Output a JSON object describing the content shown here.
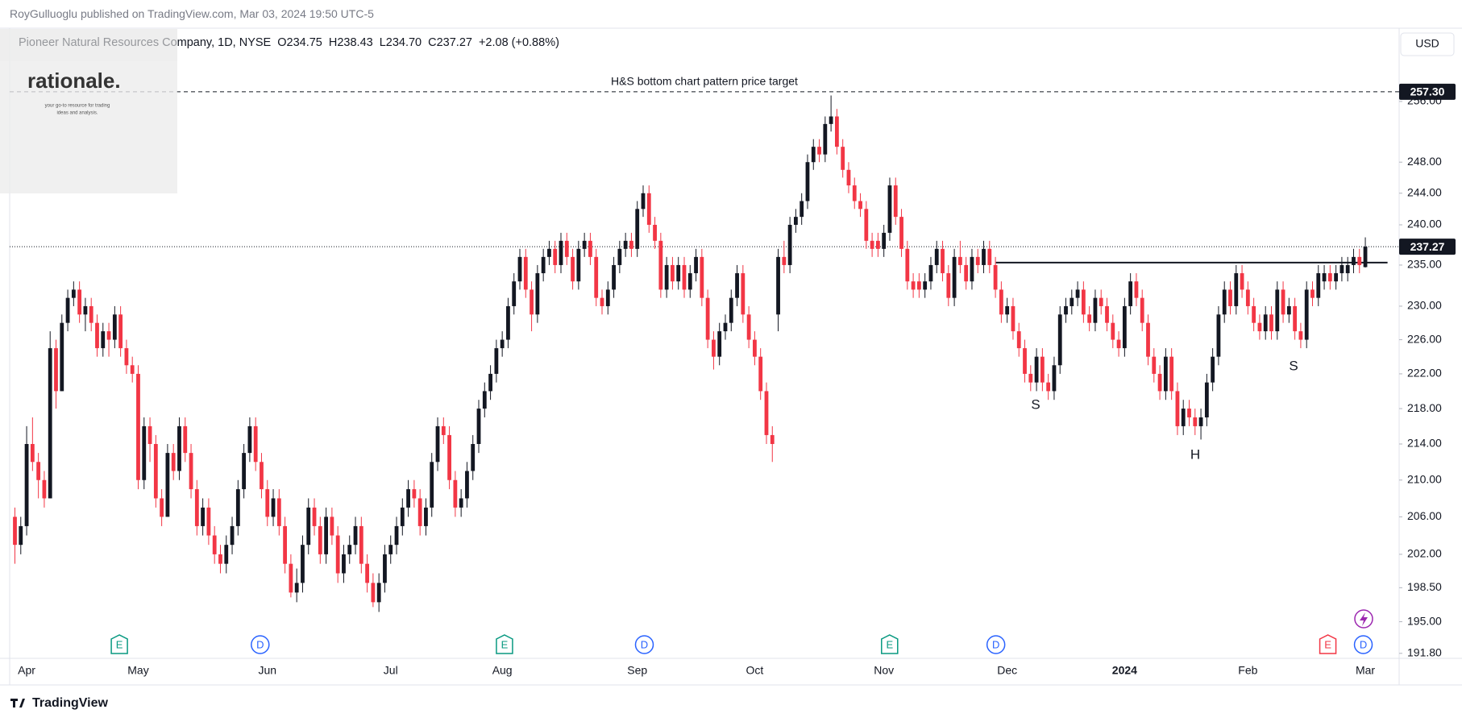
{
  "page": {
    "publisher": "RoyGulluoglu published on TradingView.com, Mar 03, 2024 19:50 UTC-5",
    "currency": "USD",
    "logo": "rationale.",
    "tagline": [
      "your go-to resource for trading",
      "ideas and analysis."
    ],
    "footer": "TradingView"
  },
  "chart_data": {
    "type": "candlestick",
    "title": "Pioneer Natural Resources Company, 1D, NYSE",
    "quote": [
      "O234.75",
      "H238.43",
      "L234.70",
      "C237.27",
      "+2.08 (+0.88%)"
    ],
    "log_scale": true,
    "grid": false,
    "up_color": "#131722",
    "down_color": "#f23645",
    "ylim": [
      191.3,
      266.0
    ],
    "yticks": [
      {
        "value": 191.8,
        "label": "191.80"
      },
      {
        "value": 195,
        "label": "195.00"
      },
      {
        "value": 198.5,
        "label": "198.50"
      },
      {
        "value": 202,
        "label": "202.00"
      },
      {
        "value": 206,
        "label": "206.00"
      },
      {
        "value": 210,
        "label": "210.00"
      },
      {
        "value": 214,
        "label": "214.00"
      },
      {
        "value": 218,
        "label": "218.00"
      },
      {
        "value": 222,
        "label": "222.00"
      },
      {
        "value": 226,
        "label": "226.00"
      },
      {
        "value": 230,
        "label": "230.00"
      },
      {
        "value": 235,
        "label": "235.00"
      },
      {
        "value": 240,
        "label": "240.00"
      },
      {
        "value": 244,
        "label": "244.00"
      },
      {
        "value": 248,
        "label": "248.00"
      },
      {
        "value": 256,
        "label": "256.00"
      }
    ],
    "target": {
      "value": 257.3,
      "label": "257.30"
    },
    "last_price": {
      "value": 237.27,
      "label": "237.27"
    },
    "neckline": 235.3,
    "annotations": [
      "H&S bottom chart pattern price target",
      "S",
      "H",
      "S"
    ],
    "events": [
      "E",
      "D",
      "E",
      "D",
      "E",
      "D",
      "E",
      "D"
    ],
    "categories": [
      null,
      null,
      "Apr",
      null,
      null,
      null,
      null,
      null,
      null,
      null,
      null,
      null,
      null,
      null,
      null,
      null,
      null,
      null,
      null,
      null,
      null,
      "May",
      null,
      null,
      null,
      null,
      null,
      null,
      null,
      null,
      null,
      null,
      null,
      null,
      null,
      null,
      null,
      null,
      null,
      null,
      null,
      null,
      null,
      "Jun",
      null,
      null,
      null,
      null,
      null,
      null,
      null,
      null,
      null,
      null,
      null,
      null,
      null,
      null,
      null,
      null,
      null,
      null,
      null,
      null,
      "Jul",
      null,
      null,
      null,
      null,
      null,
      null,
      null,
      null,
      null,
      null,
      null,
      null,
      null,
      null,
      null,
      null,
      null,
      null,
      "Aug",
      null,
      null,
      null,
      null,
      null,
      null,
      null,
      null,
      null,
      null,
      null,
      null,
      null,
      null,
      null,
      null,
      null,
      null,
      null,
      null,
      null,
      null,
      "Sep",
      null,
      null,
      null,
      null,
      null,
      null,
      null,
      null,
      null,
      null,
      null,
      null,
      null,
      null,
      null,
      null,
      null,
      null,
      null,
      "Oct",
      null,
      null,
      null,
      null,
      null,
      null,
      null,
      null,
      null,
      null,
      null,
      null,
      null,
      null,
      null,
      null,
      null,
      null,
      null,
      null,
      null,
      "Nov",
      null,
      null,
      null,
      null,
      null,
      null,
      null,
      null,
      null,
      null,
      null,
      null,
      null,
      null,
      null,
      null,
      null,
      null,
      null,
      null,
      "Dec",
      null,
      null,
      null,
      null,
      null,
      null,
      null,
      null,
      null,
      null,
      null,
      null,
      null,
      null,
      null,
      null,
      null,
      null,
      null,
      "2024",
      null,
      null,
      null,
      null,
      null,
      null,
      null,
      null,
      null,
      null,
      null,
      null,
      null,
      null,
      null,
      null,
      null,
      null,
      null,
      null,
      "Feb",
      null,
      null,
      null,
      null,
      null,
      null,
      null,
      null,
      null,
      null,
      null,
      null,
      null,
      null,
      null,
      null,
      null,
      null,
      null,
      "Mar"
    ],
    "open": [
      206,
      203,
      205,
      214,
      212,
      210,
      208,
      225,
      220,
      228,
      231,
      232,
      229,
      230,
      228,
      225,
      227,
      226,
      229,
      225,
      223,
      222,
      210,
      216,
      214,
      208,
      206,
      213,
      211,
      216,
      213,
      209,
      205,
      207,
      204,
      202,
      201,
      203,
      205,
      209,
      213,
      216,
      212,
      209,
      206,
      208,
      205,
      201,
      198,
      199,
      203,
      207,
      205,
      202,
      206,
      204,
      200,
      202,
      203,
      205,
      201,
      199,
      197,
      199,
      202,
      203,
      205,
      207,
      209,
      208,
      205,
      207,
      212,
      216,
      215,
      210,
      207,
      208,
      211,
      214,
      218,
      220,
      222,
      225,
      226,
      230,
      233,
      236,
      232,
      229,
      234,
      236,
      237,
      235,
      238,
      236,
      233,
      237,
      238,
      236,
      231,
      230,
      232,
      235,
      237,
      238,
      237,
      242,
      244,
      240,
      238,
      232,
      235,
      233,
      235,
      232,
      234,
      236,
      231,
      226,
      224,
      227,
      228,
      231,
      234,
      229,
      226,
      224,
      220,
      215,
      229,
      236,
      235,
      240,
      241,
      243,
      248,
      250,
      249,
      253,
      254,
      250,
      247,
      245,
      243,
      242,
      238,
      238,
      237,
      239,
      245,
      241,
      237,
      233,
      233,
      232,
      233,
      235,
      237,
      234,
      231,
      236,
      235,
      233,
      236,
      235,
      237,
      235,
      232,
      229,
      230,
      227,
      225,
      222,
      221,
      224,
      221,
      220,
      223,
      229,
      230,
      231,
      232,
      229,
      228,
      231,
      230,
      228,
      226,
      225,
      230,
      233,
      231,
      228,
      224,
      222,
      220,
      224,
      220,
      216,
      218,
      217,
      216,
      217,
      221,
      224,
      229,
      232,
      230,
      234,
      232,
      230,
      228,
      227,
      229,
      227,
      232,
      229,
      230,
      227,
      226,
      232,
      231,
      233,
      234,
      233,
      234,
      234,
      235,
      236,
      234.75
    ],
    "high": [
      207,
      206,
      216,
      217,
      213,
      211,
      227,
      226,
      229,
      232,
      233,
      233,
      231,
      231,
      229,
      228,
      228,
      230,
      230,
      226,
      224,
      223,
      217,
      217,
      215,
      209,
      214,
      214,
      217,
      217,
      214,
      210,
      208,
      208,
      205,
      203,
      204,
      206,
      210,
      214,
      217,
      217,
      213,
      210,
      209,
      209,
      206,
      202,
      200.5,
      204,
      208,
      208,
      206,
      207,
      207,
      205,
      203,
      204,
      206,
      206,
      202,
      200,
      200,
      203,
      204,
      206,
      208,
      210,
      210,
      209,
      208,
      213,
      217,
      217,
      216,
      211,
      209,
      212,
      215,
      219,
      221,
      223,
      226,
      227,
      231,
      234,
      237,
      237,
      233,
      235,
      237,
      238,
      238,
      239,
      239,
      237,
      238,
      239,
      239,
      237,
      232,
      233,
      236,
      238,
      239,
      239,
      243,
      245,
      245,
      241,
      239,
      236,
      236,
      236,
      236,
      235,
      237,
      237,
      232,
      227,
      228,
      229,
      232,
      235,
      235,
      230,
      227,
      225,
      221,
      216,
      237,
      238,
      241,
      242,
      244,
      249,
      251,
      251,
      254,
      256.8,
      255,
      251,
      248,
      246,
      244,
      243,
      239,
      239,
      240,
      246,
      246,
      242,
      238,
      234,
      234,
      234,
      236,
      238,
      238,
      235,
      237,
      238,
      236,
      237,
      237,
      238,
      238,
      236,
      233,
      231,
      231,
      228,
      226,
      223,
      225,
      225,
      222,
      224,
      230,
      231,
      232,
      233,
      233,
      230,
      232,
      232,
      231,
      229,
      227,
      231,
      234,
      234,
      232,
      229,
      225,
      223,
      225,
      225,
      221,
      219,
      219,
      218,
      218,
      222,
      225,
      230,
      233,
      233,
      235,
      235,
      233,
      231,
      229,
      230,
      230,
      233,
      233,
      231,
      231,
      228,
      233,
      233,
      235,
      235,
      235,
      235,
      236,
      236,
      237,
      237,
      238.43
    ],
    "low": [
      201,
      202,
      204,
      211,
      208,
      207,
      208,
      218,
      220,
      227,
      230,
      228,
      227,
      227,
      224,
      224,
      224,
      225,
      224,
      222,
      221,
      209,
      209,
      212,
      207,
      205,
      206,
      210,
      210,
      212,
      208,
      204,
      204,
      203,
      201,
      200,
      200,
      202,
      204,
      208,
      212,
      211,
      208,
      205,
      205,
      204,
      200,
      197.5,
      197,
      198,
      202,
      204,
      201,
      201,
      203,
      199,
      199,
      201,
      202,
      200,
      198,
      196.5,
      196,
      198,
      201,
      202,
      204,
      206,
      207,
      204,
      204,
      206,
      211,
      214,
      209,
      206,
      206,
      207,
      210,
      213,
      217,
      219,
      221,
      224,
      225,
      229,
      232,
      231,
      227,
      228,
      233,
      235,
      234,
      234,
      235,
      232,
      232,
      236,
      235,
      230,
      229,
      229,
      231,
      234,
      236,
      236,
      236,
      241,
      239,
      237,
      231,
      231,
      232,
      232,
      231,
      231,
      233,
      230,
      225,
      222.5,
      223,
      226,
      227,
      230,
      228,
      225,
      223,
      219,
      214,
      212,
      227,
      234,
      234,
      239,
      240,
      242,
      247,
      248,
      248,
      252,
      249,
      246,
      244,
      242,
      241,
      237,
      236,
      236,
      236,
      238,
      240,
      236,
      232,
      231,
      231,
      231,
      232,
      234,
      233,
      230,
      230,
      234,
      232,
      232,
      234,
      234,
      234,
      231,
      228,
      228,
      226,
      224,
      221,
      220,
      220,
      220,
      219,
      219,
      222,
      228,
      229,
      230,
      228,
      227,
      227,
      229,
      227,
      225,
      224,
      224,
      229,
      230,
      227,
      223,
      221,
      219,
      219,
      219,
      215,
      215,
      216,
      215,
      214.5,
      216,
      220,
      223,
      228,
      229,
      229,
      231,
      229,
      227,
      226,
      226,
      226,
      226,
      228,
      228,
      226,
      225,
      225,
      230,
      230,
      232,
      232,
      232,
      233,
      233,
      234,
      234,
      234.7
    ],
    "close": [
      203,
      205,
      214,
      212,
      210,
      208,
      225,
      220,
      228,
      231,
      232,
      229,
      230,
      228,
      225,
      227,
      226,
      229,
      225,
      223,
      222,
      210,
      216,
      214,
      208,
      206,
      213,
      211,
      216,
      213,
      209,
      205,
      207,
      204,
      202,
      201,
      203,
      205,
      209,
      213,
      216,
      212,
      209,
      206,
      208,
      205,
      201,
      198,
      199,
      203,
      207,
      205,
      202,
      206,
      204,
      200,
      202,
      203,
      205,
      201,
      199,
      197,
      199,
      202,
      203,
      205,
      207,
      209,
      208,
      205,
      207,
      212,
      216,
      215,
      210,
      207,
      208,
      211,
      214,
      218,
      220,
      222,
      225,
      226,
      230,
      233,
      236,
      232,
      229,
      234,
      236,
      237,
      235,
      238,
      236,
      233,
      237,
      238,
      236,
      231,
      230,
      232,
      235,
      237,
      238,
      237,
      242,
      244,
      240,
      238,
      232,
      235,
      233,
      235,
      232,
      234,
      236,
      231,
      226,
      224,
      227,
      228,
      231,
      234,
      229,
      226,
      224,
      220,
      215,
      214,
      236,
      235,
      240,
      241,
      243,
      248,
      250,
      249,
      253,
      254,
      250,
      247,
      245,
      243,
      242,
      238,
      237,
      237,
      239,
      245,
      241,
      237,
      233,
      232,
      232,
      233,
      235,
      237,
      234,
      231,
      236,
      235,
      233,
      236,
      235,
      237,
      235,
      232,
      229,
      230,
      227,
      225,
      222,
      221,
      224,
      221,
      220,
      223,
      229,
      230,
      231,
      232,
      229,
      228,
      231,
      230,
      228,
      226,
      225,
      230,
      233,
      231,
      228,
      224,
      222,
      220,
      224,
      220,
      216,
      218,
      217,
      216,
      217,
      221,
      224,
      229,
      232,
      230,
      234,
      232,
      230,
      228,
      227,
      229,
      227,
      232,
      229,
      230,
      227,
      226,
      232,
      231,
      234,
      234,
      233,
      234,
      235,
      235,
      236,
      235,
      237.27
    ]
  }
}
